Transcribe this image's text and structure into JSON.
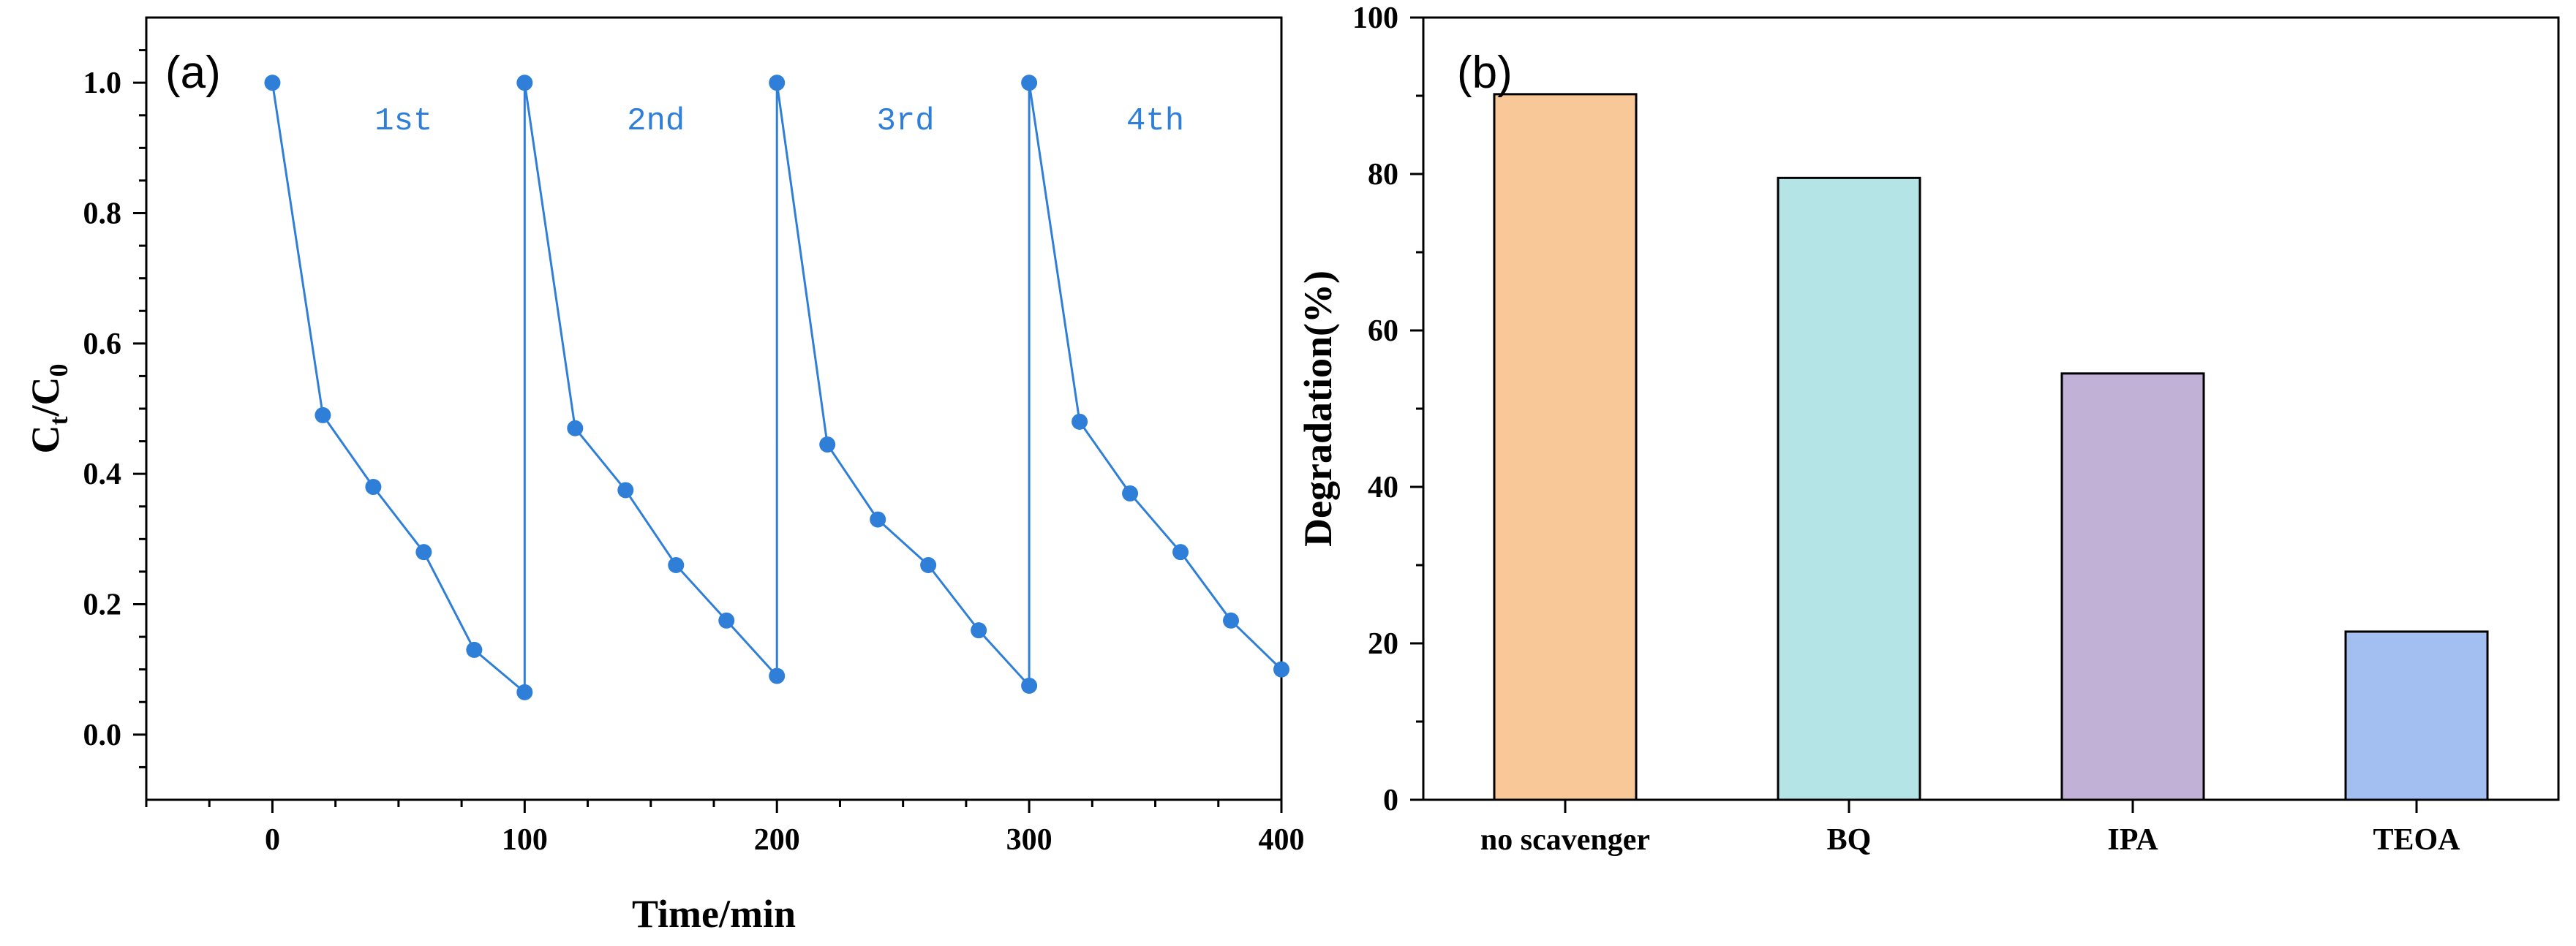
{
  "chart_data": [
    {
      "type": "line",
      "panel_label": "(a)",
      "title": "",
      "xlabel": "Time/min",
      "ylabel_main": "C",
      "ylabel_sub1": "t",
      "ylabel_sep": "/C",
      "ylabel_sub2": "0",
      "xlim": [
        -50,
        400
      ],
      "ylim": [
        -0.1,
        1.1
      ],
      "xticks": [
        0,
        100,
        200,
        300,
        400
      ],
      "xtick_labels": [
        "0",
        "100",
        "200",
        "300",
        "400"
      ],
      "yticks": [
        0.0,
        0.2,
        0.4,
        0.6,
        0.8,
        1.0
      ],
      "ytick_labels": [
        "0.0",
        "0.2",
        "0.4",
        "0.6",
        "0.8",
        "1.0"
      ],
      "grid": false,
      "series": [
        {
          "name": "Ct/C0",
          "color": "#2f7fd9",
          "x": [
            0,
            20,
            40,
            60,
            80,
            100,
            100,
            120,
            140,
            160,
            180,
            200,
            200,
            220,
            240,
            260,
            280,
            300,
            300,
            320,
            340,
            360,
            380,
            400
          ],
          "y": [
            1.0,
            0.49,
            0.38,
            0.28,
            0.13,
            0.065,
            1.0,
            0.47,
            0.375,
            0.26,
            0.175,
            0.09,
            1.0,
            0.445,
            0.33,
            0.26,
            0.16,
            0.075,
            1.0,
            0.48,
            0.37,
            0.28,
            0.175,
            0.1
          ]
        }
      ],
      "annotations": [
        {
          "text": "1st",
          "x": 52,
          "y": 0.945
        },
        {
          "text": "2nd",
          "x": 152,
          "y": 0.945
        },
        {
          "text": "3rd",
          "x": 251,
          "y": 0.945
        },
        {
          "text": "4th",
          "x": 350,
          "y": 0.945
        }
      ]
    },
    {
      "type": "bar",
      "panel_label": "(b)",
      "title": "",
      "xlabel": "",
      "ylabel": "Degradation(%)",
      "ylim": [
        0,
        100
      ],
      "yticks": [
        0,
        20,
        40,
        60,
        80,
        100
      ],
      "ytick_labels": [
        "0",
        "20",
        "40",
        "60",
        "80",
        "100"
      ],
      "grid": false,
      "categories": [
        "no scavenger",
        "BQ",
        "IPA",
        "TEOA"
      ],
      "values": [
        90.2,
        79.5,
        54.5,
        21.5
      ],
      "colors": [
        "#f9c898",
        "#b4e4e6",
        "#c1b1d7",
        "#a3bff2"
      ]
    }
  ]
}
